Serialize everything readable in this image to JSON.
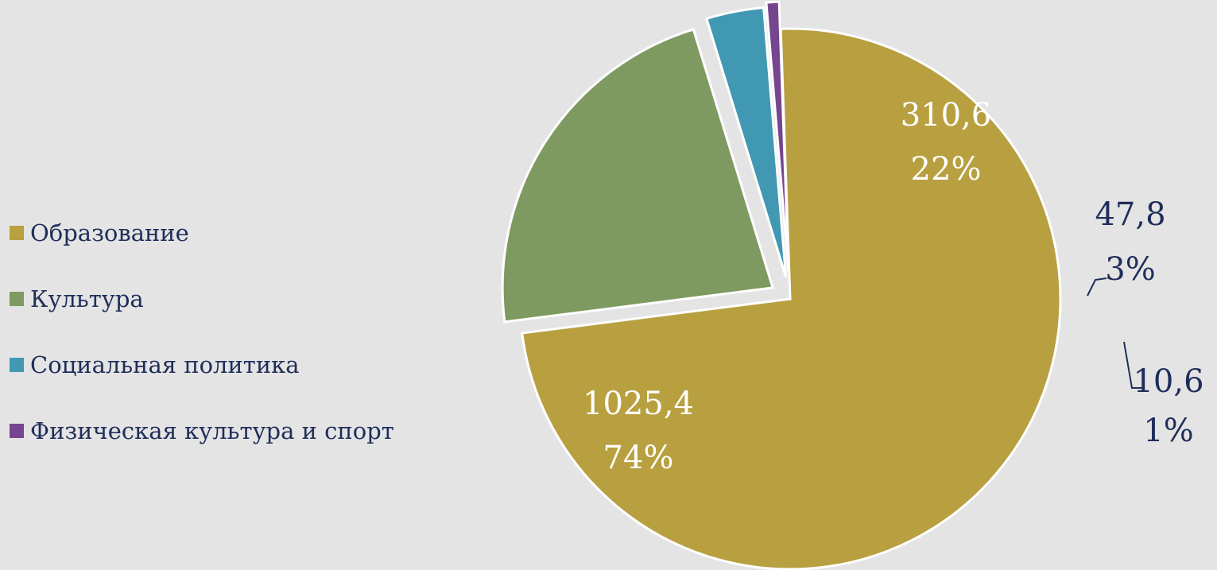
{
  "chart_data": {
    "type": "pie",
    "exploded": true,
    "start_angle_deg": -92,
    "title": "",
    "series": [
      {
        "categories": [
          "Образование",
          "Культура",
          "Социальная политика",
          "Физическая культура и спорт"
        ],
        "values": [
          1025.4,
          310.6,
          47.8,
          10.6
        ],
        "value_labels": [
          "1025,4",
          "310,6",
          "47,8",
          "10,6"
        ],
        "percent_labels": [
          "74%",
          "22%",
          "3%",
          "1%"
        ]
      }
    ],
    "colors": [
      "#b8a040",
      "#7f9a60",
      "#4198b2",
      "#76458f"
    ],
    "label_colors": [
      "#ffffff",
      "#ffffff",
      "#1f2d5a",
      "#1f2d5a"
    ],
    "legend": {
      "position": "left",
      "items": [
        "Образование",
        "Культура",
        "Социальная политика",
        "Физическая культура и спорт"
      ]
    }
  }
}
